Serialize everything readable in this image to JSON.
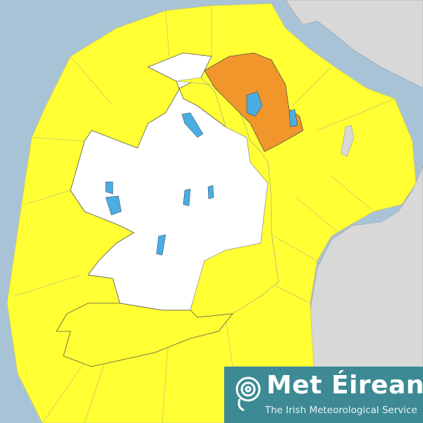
{
  "map": {
    "colors": {
      "sea": "#a9c3d6",
      "yellow_warning": "#ffff33",
      "orange_warning": "#f0962a",
      "no_warning": "#ffffff",
      "other_land": "#d8d8d8",
      "lakes": "#4aaee0"
    },
    "warning_levels": [
      "yellow",
      "orange"
    ],
    "orange_regions": [
      "Northern Ireland (north-east)"
    ]
  },
  "logo": {
    "title": "Met Éireann",
    "subtitle": "The Irish Meteorological Service",
    "icon": "spiral-swirl-icon"
  }
}
